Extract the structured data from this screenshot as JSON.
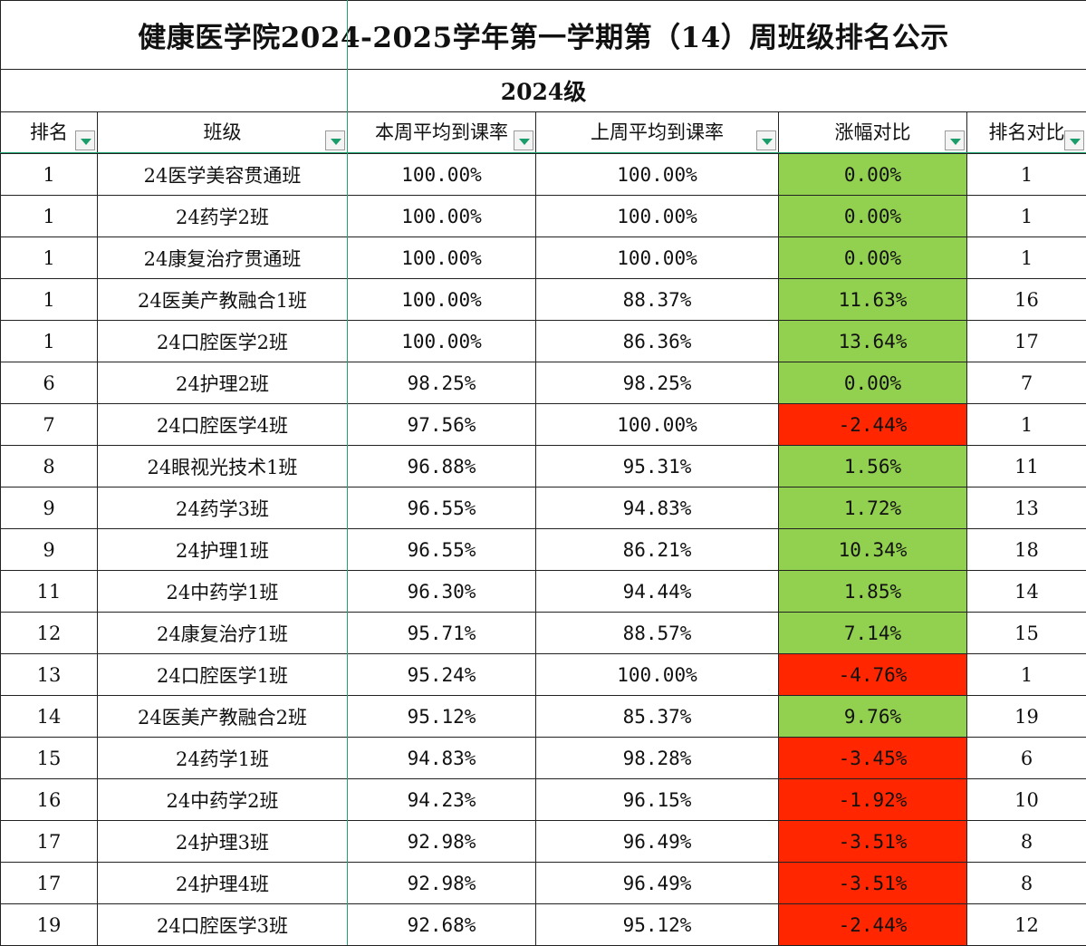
{
  "title": "健康医学院2024-2025学年第一学期第（14）周班级排名公示",
  "grade": "2024级",
  "headers": {
    "rank": "排名",
    "class": "班级",
    "this_week": "本周平均到课率",
    "last_week": "上周平均到课率",
    "change": "涨幅对比",
    "rank_compare": "排名对比"
  },
  "colors": {
    "positive": "#92d050",
    "negative": "#ff2600",
    "filter_arrow": "#1a9c6b"
  },
  "rows": [
    {
      "rank": "1",
      "class": "24医学美容贯通班",
      "this_week": "100.00%",
      "last_week": "100.00%",
      "change": "0.00%",
      "rank_compare": "1",
      "trend": "pos"
    },
    {
      "rank": "1",
      "class": "24药学2班",
      "this_week": "100.00%",
      "last_week": "100.00%",
      "change": "0.00%",
      "rank_compare": "1",
      "trend": "pos"
    },
    {
      "rank": "1",
      "class": "24康复治疗贯通班",
      "this_week": "100.00%",
      "last_week": "100.00%",
      "change": "0.00%",
      "rank_compare": "1",
      "trend": "pos"
    },
    {
      "rank": "1",
      "class": "24医美产教融合1班",
      "this_week": "100.00%",
      "last_week": "88.37%",
      "change": "11.63%",
      "rank_compare": "16",
      "trend": "pos"
    },
    {
      "rank": "1",
      "class": "24口腔医学2班",
      "this_week": "100.00%",
      "last_week": "86.36%",
      "change": "13.64%",
      "rank_compare": "17",
      "trend": "pos"
    },
    {
      "rank": "6",
      "class": "24护理2班",
      "this_week": "98.25%",
      "last_week": "98.25%",
      "change": "0.00%",
      "rank_compare": "7",
      "trend": "pos"
    },
    {
      "rank": "7",
      "class": "24口腔医学4班",
      "this_week": "97.56%",
      "last_week": "100.00%",
      "change": "-2.44%",
      "rank_compare": "1",
      "trend": "neg"
    },
    {
      "rank": "8",
      "class": "24眼视光技术1班",
      "this_week": "96.88%",
      "last_week": "95.31%",
      "change": "1.56%",
      "rank_compare": "11",
      "trend": "pos"
    },
    {
      "rank": "9",
      "class": "24药学3班",
      "this_week": "96.55%",
      "last_week": "94.83%",
      "change": "1.72%",
      "rank_compare": "13",
      "trend": "pos"
    },
    {
      "rank": "9",
      "class": "24护理1班",
      "this_week": "96.55%",
      "last_week": "86.21%",
      "change": "10.34%",
      "rank_compare": "18",
      "trend": "pos"
    },
    {
      "rank": "11",
      "class": "24中药学1班",
      "this_week": "96.30%",
      "last_week": "94.44%",
      "change": "1.85%",
      "rank_compare": "14",
      "trend": "pos"
    },
    {
      "rank": "12",
      "class": "24康复治疗1班",
      "this_week": "95.71%",
      "last_week": "88.57%",
      "change": "7.14%",
      "rank_compare": "15",
      "trend": "pos"
    },
    {
      "rank": "13",
      "class": "24口腔医学1班",
      "this_week": "95.24%",
      "last_week": "100.00%",
      "change": "-4.76%",
      "rank_compare": "1",
      "trend": "neg"
    },
    {
      "rank": "14",
      "class": "24医美产教融合2班",
      "this_week": "95.12%",
      "last_week": "85.37%",
      "change": "9.76%",
      "rank_compare": "19",
      "trend": "pos"
    },
    {
      "rank": "15",
      "class": "24药学1班",
      "this_week": "94.83%",
      "last_week": "98.28%",
      "change": "-3.45%",
      "rank_compare": "6",
      "trend": "neg"
    },
    {
      "rank": "16",
      "class": "24中药学2班",
      "this_week": "94.23%",
      "last_week": "96.15%",
      "change": "-1.92%",
      "rank_compare": "10",
      "trend": "neg"
    },
    {
      "rank": "17",
      "class": "24护理3班",
      "this_week": "92.98%",
      "last_week": "96.49%",
      "change": "-3.51%",
      "rank_compare": "8",
      "trend": "neg"
    },
    {
      "rank": "17",
      "class": "24护理4班",
      "this_week": "92.98%",
      "last_week": "96.49%",
      "change": "-3.51%",
      "rank_compare": "8",
      "trend": "neg"
    },
    {
      "rank": "19",
      "class": "24口腔医学3班",
      "this_week": "92.68%",
      "last_week": "95.12%",
      "change": "-2.44%",
      "rank_compare": "12",
      "trend": "neg"
    }
  ]
}
